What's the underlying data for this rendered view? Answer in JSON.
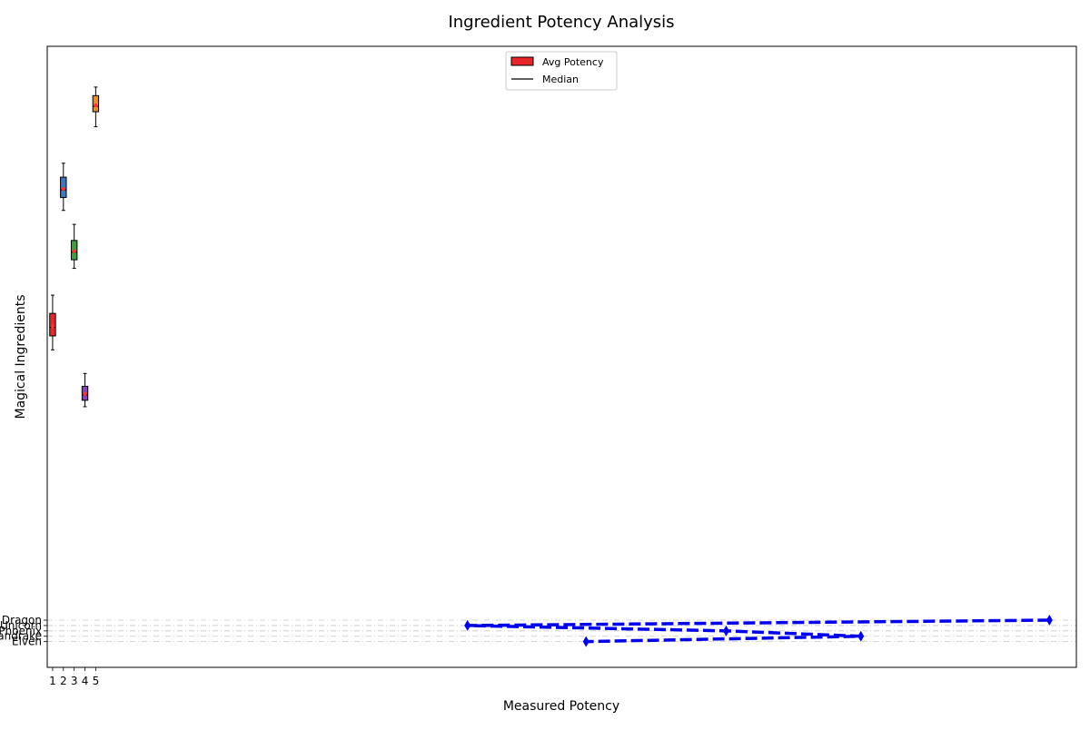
{
  "chart_data": {
    "type": "box",
    "title": "Ingredient Potency Analysis",
    "xlabel": "Measured Potency",
    "ylabel": "Magical Ingredients",
    "x_ticks": [
      "1",
      "2",
      "3",
      "4",
      "5"
    ],
    "y_ticks": [
      "Dragon",
      "Unicorn",
      "Phoenix",
      "Mandrake",
      "Elven"
    ],
    "legend": {
      "placement": "top-center",
      "entries": [
        {
          "label": "Avg Potency",
          "kind": "patch",
          "color": "#e8262a"
        },
        {
          "label": "Median",
          "kind": "line",
          "color": "#000000"
        }
      ]
    },
    "box_series": [
      {
        "position": 1,
        "color": "#e8262a",
        "whisker_low": 27.2,
        "q1": 28.5,
        "median": 29.3,
        "mean": 29.4,
        "q3": 30.6,
        "whisker_high": 32.3
      },
      {
        "position": 2,
        "color": "#3e78c2",
        "whisker_low": 40.2,
        "q1": 41.4,
        "median": 42.1,
        "mean": 42.2,
        "q3": 43.3,
        "whisker_high": 44.6
      },
      {
        "position": 3,
        "color": "#3aa23a",
        "whisker_low": 34.8,
        "q1": 35.6,
        "median": 36.3,
        "mean": 36.4,
        "q3": 37.4,
        "whisker_high": 38.9
      },
      {
        "position": 4,
        "color": "#8a3ec2",
        "whisker_low": 21.9,
        "q1": 22.5,
        "median": 23.0,
        "mean": 23.1,
        "q3": 23.8,
        "whisker_high": 25.0
      },
      {
        "position": 5,
        "color": "#ee8a1e",
        "whisker_low": 48.0,
        "q1": 49.4,
        "median": 49.9,
        "mean": 50.0,
        "q3": 50.9,
        "whisker_high": 51.7
      }
    ],
    "line_series": {
      "color": "#0000ee",
      "style": "dashed",
      "marker": "diamond",
      "points": [
        {
          "x": 93.5,
          "y": 2.0
        },
        {
          "x": 39.5,
          "y": 1.5
        },
        {
          "x": 63.5,
          "y": 1.0
        },
        {
          "x": 76.0,
          "y": 0.5
        },
        {
          "x": 50.5,
          "y": 0.0
        }
      ]
    },
    "xlim": [
      0.5,
      96.0
    ],
    "ylim": [
      -2.4,
      55.5
    ],
    "grid": {
      "x": false,
      "y": "dashed"
    }
  }
}
